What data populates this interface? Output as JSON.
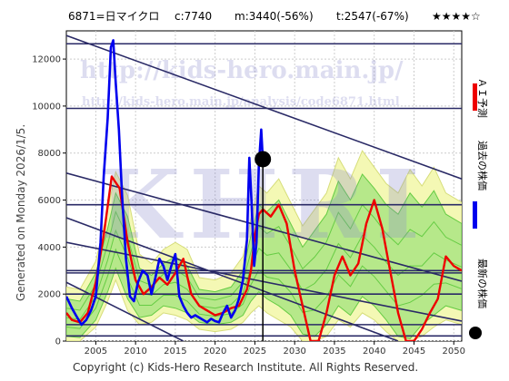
{
  "header": {
    "code_name": "6871=日マイクロ",
    "current": "c:7740",
    "min": "m:3440(-56%)",
    "target": "t:2547(-67%)",
    "rating": "★★★★☆"
  },
  "side_text": "Generated on Monday 2026/1/5.",
  "watermark": {
    "url1": "http://kids-hero.main.jp/",
    "url2": "http://kids-hero.main.jp/analysis/code6871.html",
    "logo": "KHRI"
  },
  "legend": {
    "ai": "ＡＩ予測",
    "past": "過去の株価",
    "latest": "最新の株価"
  },
  "colors": {
    "past": "#0000ee",
    "ai": "#ee0000",
    "latest": "#000000",
    "trend": "#2a2a66",
    "band_light": "#f4f8b4",
    "band_green": "#66cc44"
  },
  "footer": "Copyright (c) Kids-Hero Research Institute. All Rights Reserved.",
  "chart_data": {
    "type": "line",
    "xlim": [
      2001.3,
      2051.0
    ],
    "ylim": [
      0,
      13200
    ],
    "x_ticks": [
      2005,
      2010,
      2015,
      2020,
      2025,
      2030,
      2035,
      2040,
      2045,
      2050
    ],
    "y_ticks": [
      0,
      2000,
      4000,
      6000,
      8000,
      10000,
      12000
    ],
    "grid": true,
    "series": [
      {
        "name": "過去の株価",
        "x": [
          2001.3,
          2002.0,
          2002.5,
          2003.2,
          2003.8,
          2004.4,
          2005.0,
          2005.6,
          2006.0,
          2006.5,
          2006.9,
          2007.2,
          2007.5,
          2007.9,
          2008.3,
          2008.8,
          2009.3,
          2009.8,
          2010.3,
          2010.9,
          2011.5,
          2012.0,
          2012.5,
          2013.0,
          2013.5,
          2014.0,
          2014.5,
          2015.0,
          2015.5,
          2016.0,
          2016.5,
          2017.0,
          2017.5,
          2018.0,
          2018.5,
          2019.0,
          2019.5,
          2020.0,
          2020.5,
          2021.0,
          2021.5,
          2022.0,
          2022.5,
          2023.0,
          2023.5,
          2024.0,
          2024.3,
          2024.6,
          2024.9,
          2025.2,
          2025.5,
          2025.8,
          2026.0
        ],
        "y": [
          1900,
          1400,
          1100,
          700,
          900,
          1300,
          1900,
          4200,
          7000,
          9500,
          12500,
          12800,
          11000,
          9000,
          6200,
          3500,
          1900,
          1700,
          2500,
          3000,
          2800,
          2000,
          2700,
          3500,
          3200,
          2600,
          3200,
          3700,
          1900,
          1500,
          1200,
          1000,
          1100,
          1000,
          900,
          800,
          950,
          850,
          800,
          1200,
          1500,
          1000,
          1300,
          1800,
          2600,
          4300,
          7800,
          5800,
          3200,
          4200,
          7500,
          9000,
          7700
        ]
      },
      {
        "name": "ＡＩ予測",
        "x": [
          2001.3,
          2002.0,
          2003.0,
          2004.0,
          2005.0,
          2006.0,
          2007.0,
          2008.0,
          2009.0,
          2010.0,
          2011.0,
          2012.0,
          2013.0,
          2014.0,
          2015.0,
          2016.0,
          2017.0,
          2018.0,
          2019.0,
          2020.0,
          2021.0,
          2022.0,
          2023.0,
          2024.0,
          2024.5,
          2025.0,
          2025.5,
          2026.0,
          2027.0,
          2028.0,
          2029.0,
          2030.0,
          2031.0,
          2032.0,
          2033.0,
          2034.0,
          2035.0,
          2036.0,
          2037.0,
          2038.0,
          2039.0,
          2040.0,
          2041.0,
          2042.0,
          2043.0,
          2044.0,
          2045.0,
          2046.0,
          2047.0,
          2048.0,
          2049.0,
          2050.0,
          2051.0
        ],
        "y": [
          1200,
          900,
          800,
          1200,
          2500,
          4500,
          7000,
          6500,
          4200,
          2600,
          2000,
          2300,
          2700,
          2400,
          2900,
          3500,
          2000,
          1500,
          1300,
          1100,
          1200,
          1400,
          1500,
          2200,
          3000,
          4500,
          5400,
          5600,
          5300,
          5800,
          5000,
          3000,
          1500,
          0,
          0,
          1200,
          2800,
          3600,
          2800,
          3300,
          5000,
          6000,
          4800,
          3000,
          1200,
          0,
          0,
          500,
          1200,
          1800,
          3600,
          3200,
          3000
        ]
      },
      {
        "name": "最新の株価",
        "x": [
          2026.0
        ],
        "y": [
          7740
        ]
      }
    ],
    "trend_lines": [
      {
        "x": [
          2001.3,
          2051.0
        ],
        "y": [
          13000,
          6900
        ]
      },
      {
        "x": [
          2001.3,
          2051.0
        ],
        "y": [
          12650,
          12650
        ]
      },
      {
        "x": [
          2001.3,
          2051.0
        ],
        "y": [
          9900,
          9900
        ]
      },
      {
        "x": [
          2001.3,
          2051.0
        ],
        "y": [
          7150,
          2550
        ]
      },
      {
        "x": [
          2001.3,
          2051.0
        ],
        "y": [
          5800,
          5800
        ]
      },
      {
        "x": [
          2001.3,
          2051.0
        ],
        "y": [
          2900,
          2900
        ]
      },
      {
        "x": [
          2001.3,
          2051.0
        ],
        "y": [
          4200,
          850
        ]
      },
      {
        "x": [
          2001.3,
          2051.0
        ],
        "y": [
          3000,
          3000
        ]
      },
      {
        "x": [
          2001.3,
          2051.0
        ],
        "y": [
          2000,
          2000
        ]
      },
      {
        "x": [
          2001.3,
          2051.0
        ],
        "y": [
          700,
          700
        ]
      },
      {
        "x": [
          2001.3,
          2051.0
        ],
        "y": [
          220,
          220
        ]
      },
      {
        "x": [
          2001.3,
          2043.0
        ],
        "y": [
          5250,
          0
        ]
      },
      {
        "x": [
          2001.3,
          2016.0
        ],
        "y": [
          2500,
          0
        ]
      }
    ],
    "band_outer": {
      "x": [
        2001.3,
        2003.0,
        2005.0,
        2006.5,
        2007.5,
        2009.0,
        2010.5,
        2012.0,
        2013.5,
        2015.0,
        2016.5,
        2018.0,
        2020.0,
        2022.0,
        2023.5,
        2024.5,
        2025.5,
        2026.5,
        2028.0,
        2029.5,
        2031.0,
        2032.5,
        2034.0,
        2035.5,
        2037.0,
        2038.5,
        2040.0,
        2041.5,
        2043.0,
        2044.5,
        2046.0,
        2047.5,
        2049.0,
        2051.0
      ],
      "upper": [
        2300,
        2200,
        3400,
        5600,
        7200,
        6200,
        3700,
        3300,
        3900,
        4200,
        3900,
        2700,
        2600,
        2900,
        3600,
        5200,
        6600,
        6300,
        6900,
        5900,
        4900,
        5600,
        6300,
        7800,
        6900,
        8100,
        7400,
        6700,
        6300,
        7300,
        6600,
        7400,
        6300,
        5900
      ],
      "lower": [
        0,
        0,
        600,
        1700,
        2600,
        1300,
        700,
        800,
        1200,
        1100,
        900,
        500,
        400,
        500,
        800,
        1200,
        1500,
        1200,
        900,
        600,
        0,
        0,
        200,
        900,
        600,
        1200,
        900,
        400,
        0,
        0,
        200,
        600,
        900,
        700
      ]
    },
    "band_inner": {
      "x": [
        2001.3,
        2003.0,
        2005.0,
        2006.5,
        2007.5,
        2009.0,
        2010.5,
        2012.0,
        2013.5,
        2015.0,
        2016.5,
        2018.0,
        2020.0,
        2022.0,
        2023.5,
        2024.5,
        2025.5,
        2026.5,
        2028.0,
        2029.5,
        2031.0,
        2032.5,
        2034.0,
        2035.5,
        2037.0,
        2038.5,
        2040.0,
        2041.5,
        2043.0,
        2044.5,
        2046.0,
        2047.5,
        2049.0,
        2051.0
      ],
      "upper": [
        1800,
        1700,
        2900,
        4800,
        6300,
        5300,
        3100,
        2800,
        3300,
        3600,
        3200,
        2200,
        2100,
        2300,
        3000,
        4500,
        5800,
        5500,
        6000,
        5000,
        4000,
        4700,
        5400,
        6800,
        6000,
        7100,
        6500,
        5800,
        5400,
        6300,
        5700,
        6400,
        5400,
        5000
      ],
      "lower": [
        200,
        150,
        900,
        2100,
        3100,
        1800,
        1000,
        1100,
        1500,
        1400,
        1200,
        800,
        700,
        800,
        1100,
        1700,
        2100,
        1800,
        1500,
        1100,
        300,
        200,
        700,
        1500,
        1100,
        1900,
        1500,
        900,
        200,
        100,
        700,
        1100,
        1500,
        1300
      ]
    }
  }
}
